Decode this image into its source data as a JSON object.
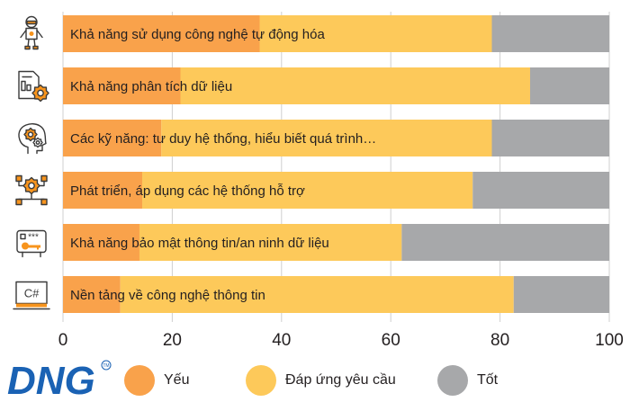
{
  "chart_data": {
    "type": "bar",
    "stacked": true,
    "orientation": "horizontal",
    "categories": [
      "Khả năng sử dụng công nghệ tự động hóa",
      "Khả năng phân tích dữ liệu",
      "Các kỹ năng: tư duy hệ thống, hiểu biết quá trình…",
      "Phát triển, áp dụng các hệ thống hỗ trợ",
      "Khả năng bảo mật thông tin/an ninh dữ liệu",
      "Nền tảng về công nghệ thông tin"
    ],
    "category_icons": [
      "robot-icon",
      "report-gear-icon",
      "head-gears-icon",
      "gear-network-icon",
      "password-key-icon",
      "csharp-monitor-icon"
    ],
    "series": [
      {
        "name": "Yếu",
        "color": "#f9a24b",
        "values": [
          36,
          21.5,
          18,
          14.5,
          14,
          10.5
        ]
      },
      {
        "name": "Đáp ứng yêu cầu",
        "color": "#fdc95a",
        "values": [
          42.5,
          64,
          60.5,
          60.5,
          48,
          72
        ]
      },
      {
        "name": "Tốt",
        "color": "#a7a8aa",
        "values": [
          21.5,
          14.5,
          21.5,
          25,
          38,
          17.5
        ]
      }
    ],
    "xlim": [
      0,
      100
    ],
    "xticks": [
      "0",
      "20",
      "40",
      "60",
      "80",
      "100"
    ],
    "grid": true,
    "legend_position": "bottom"
  },
  "logo": {
    "text": "DNG",
    "tm": "TM"
  }
}
